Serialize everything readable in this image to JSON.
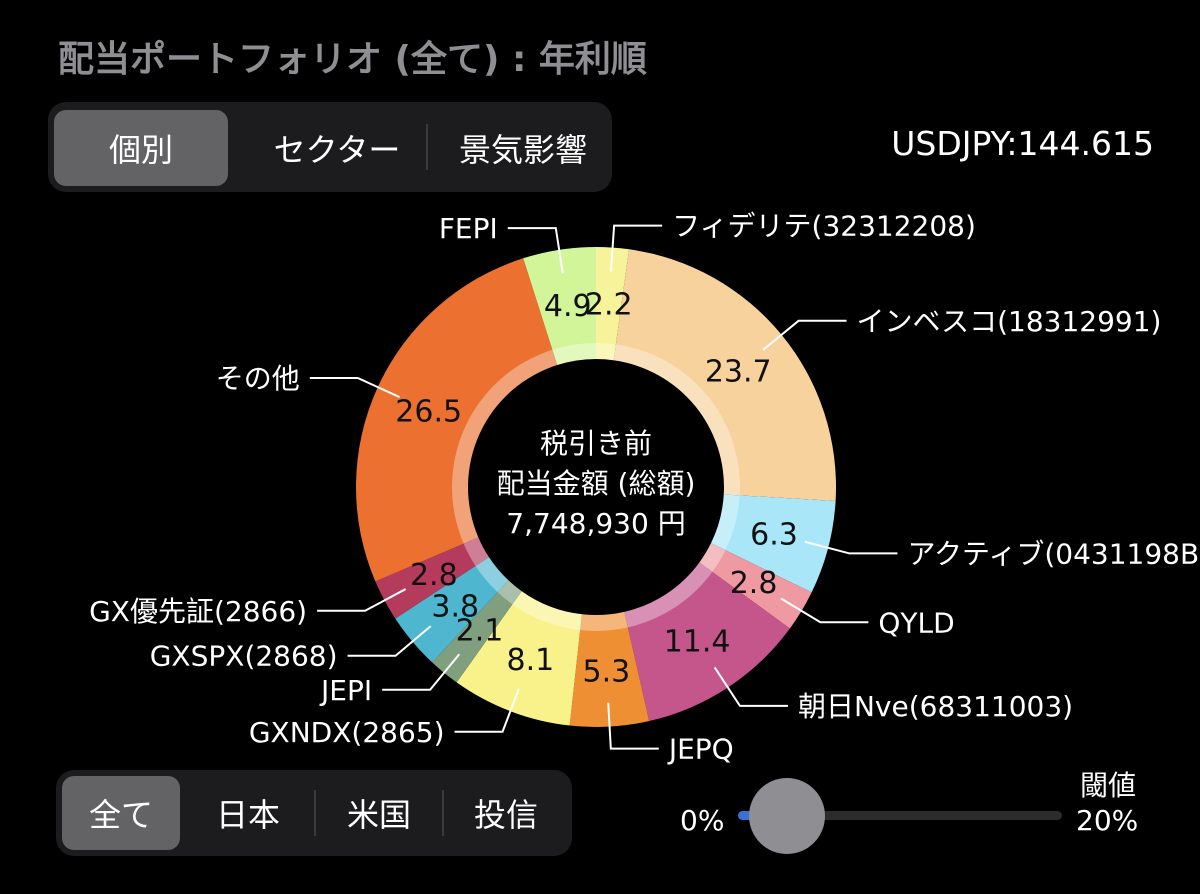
{
  "page_title": "配当ポートフォリオ (全て) : 年利順",
  "top_segment": {
    "options": [
      "個別",
      "セクター",
      "景気影響"
    ],
    "selected": "個別"
  },
  "rate_text": "USDJPY:144.615",
  "bottom_segment": {
    "options": [
      "全て",
      "日本",
      "米国",
      "投信"
    ],
    "selected": "全て"
  },
  "slider": {
    "min_label": "0%",
    "max_label": "20%",
    "caption": "閾値",
    "value_fraction": 0.15
  },
  "colors": {
    "accent": "#3a6fd8",
    "selected_segment": "#636366",
    "background": "#000000"
  },
  "chart_data": {
    "type": "pie",
    "donut": true,
    "center_text": [
      "税引き前",
      "配当金額 (総額)",
      "7,748,930 円"
    ],
    "slices": [
      {
        "label": "フィデリテ(32312208)",
        "value": 2.2,
        "color": "#f7f39a"
      },
      {
        "label": "インベスコ(18312991)",
        "value": 23.7,
        "color": "#f8d29c"
      },
      {
        "label": "アクティブ(0431198B",
        "value": 6.3,
        "color": "#a8e6f8"
      },
      {
        "label": "QYLD",
        "value": 2.8,
        "color": "#ef9aa2"
      },
      {
        "label": "朝日Nve(68311003)",
        "value": 11.4,
        "color": "#c4568c"
      },
      {
        "label": "JEPQ",
        "value": 5.3,
        "color": "#ef8f34"
      },
      {
        "label": "GXNDX(2865)",
        "value": 8.1,
        "color": "#f9f28a"
      },
      {
        "label": "JEPI",
        "value": 2.1,
        "color": "#7f9f7f"
      },
      {
        "label": "GXSPX(2868)",
        "value": 3.8,
        "color": "#4fb6d0"
      },
      {
        "label": "GX優先証(2866)",
        "value": 2.8,
        "color": "#b53b5d"
      },
      {
        "label": "その他",
        "value": 26.5,
        "color": "#ec7030"
      },
      {
        "label": "FEPI",
        "value": 4.9,
        "color": "#d3f59a"
      }
    ]
  }
}
